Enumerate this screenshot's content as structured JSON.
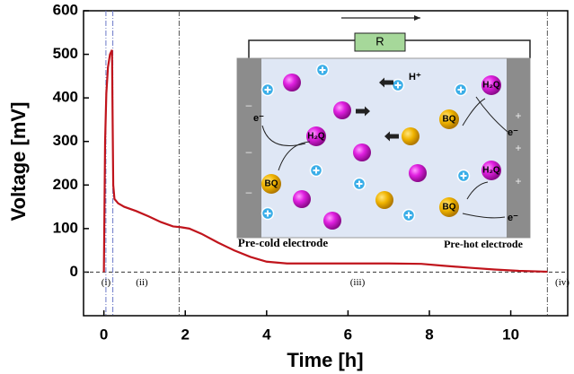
{
  "chart_data": {
    "type": "line",
    "xlabel": "Time [h]",
    "ylabel": "Voltage [mV]",
    "xlim": [
      -0.5,
      11.4
    ],
    "ylim": [
      -100,
      600
    ],
    "xticks": [
      0,
      2,
      4,
      6,
      8,
      10
    ],
    "yticks": [
      0,
      100,
      200,
      300,
      400,
      500,
      600
    ],
    "series": [
      {
        "color": "#c0141c",
        "x": [
          0,
          0.03,
          0.06,
          0.1,
          0.15,
          0.2,
          0.21,
          0.23,
          0.26,
          0.35,
          0.5,
          0.8,
          1.1,
          1.4,
          1.7,
          1.9,
          2.1,
          2.4,
          2.8,
          3.2,
          3.6,
          4.0,
          4.5,
          5,
          6,
          7,
          7.8,
          8.3,
          9,
          9.6,
          10.2,
          10.9
        ],
        "values": [
          0,
          300,
          410,
          470,
          500,
          510,
          400,
          200,
          168,
          158,
          150,
          140,
          128,
          115,
          105,
          103,
          100,
          88,
          68,
          50,
          35,
          24,
          20,
          20,
          20,
          20,
          19,
          15,
          10,
          6,
          3,
          1
        ]
      }
    ],
    "zero_line": 0,
    "vlines": [
      0.05,
      0.22,
      1.85,
      10.9
    ],
    "regions": [
      "(i)",
      "(ii)",
      "(iii)",
      "(iv)"
    ]
  },
  "inset": {
    "resistor": "R",
    "proton": "H⁺",
    "electrons": [
      "e⁻",
      "e⁻",
      "e⁻"
    ],
    "h2q": [
      "H₂Q",
      "H₂Q",
      "H₂Q"
    ],
    "bq": [
      "BQ",
      "BQ",
      "BQ"
    ],
    "minus": [
      "–",
      "–",
      "–"
    ],
    "plus": [
      "+",
      "+",
      "+"
    ],
    "left_electrode": "Pre-cold electrode",
    "right_electrode": "Pre-hot electrode"
  }
}
